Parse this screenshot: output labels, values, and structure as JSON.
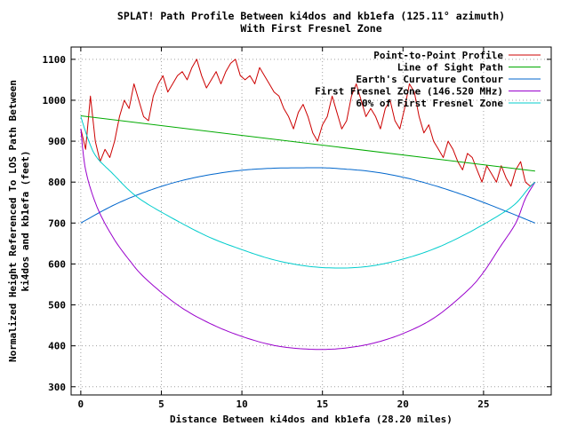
{
  "chart_data": {
    "type": "line",
    "title_line1": "SPLAT! Path Profile Between ki4dos and kb1efa (125.11° azimuth)",
    "title_line2": "With First Fresnel Zone",
    "xlabel": "Distance Between ki4dos and kb1efa (28.20 miles)",
    "ylabel_line1": "Normalized Height Referenced To LOS Path Between",
    "ylabel_line2": "ki4dos and kb1efa (feet)",
    "xlim": [
      -0.6,
      29.2
    ],
    "ylim": [
      280,
      1130
    ],
    "xticks": [
      0,
      5,
      10,
      15,
      20,
      25
    ],
    "yticks": [
      300,
      400,
      500,
      600,
      700,
      800,
      900,
      1000,
      1100
    ],
    "grid": true,
    "legend_position": "top-right",
    "series": [
      {
        "name": "Point-to-Point Profile",
        "color": "#cc0000",
        "x": [
          0,
          0.3,
          0.6,
          0.9,
          1.2,
          1.5,
          1.8,
          2.1,
          2.4,
          2.7,
          3.0,
          3.3,
          3.6,
          3.9,
          4.2,
          4.5,
          4.8,
          5.1,
          5.4,
          5.7,
          6.0,
          6.3,
          6.6,
          6.9,
          7.2,
          7.5,
          7.8,
          8.1,
          8.4,
          8.7,
          9.0,
          9.3,
          9.6,
          9.9,
          10.2,
          10.5,
          10.8,
          11.1,
          11.4,
          11.7,
          12.0,
          12.3,
          12.6,
          12.9,
          13.2,
          13.5,
          13.8,
          14.1,
          14.4,
          14.7,
          15.0,
          15.3,
          15.6,
          15.9,
          16.2,
          16.5,
          16.8,
          17.1,
          17.4,
          17.7,
          18.0,
          18.3,
          18.6,
          18.9,
          19.2,
          19.5,
          19.8,
          20.1,
          20.4,
          20.7,
          21.0,
          21.3,
          21.6,
          21.9,
          22.2,
          22.5,
          22.8,
          23.1,
          23.4,
          23.7,
          24.0,
          24.3,
          24.6,
          24.9,
          25.2,
          25.5,
          25.8,
          26.1,
          26.4,
          26.7,
          27.0,
          27.3,
          27.6,
          27.9,
          28.2
        ],
        "y": [
          930,
          880,
          1010,
          900,
          850,
          880,
          860,
          900,
          960,
          1000,
          980,
          1040,
          1000,
          960,
          950,
          1010,
          1040,
          1060,
          1020,
          1040,
          1060,
          1070,
          1050,
          1080,
          1100,
          1060,
          1030,
          1050,
          1070,
          1040,
          1070,
          1090,
          1100,
          1060,
          1050,
          1060,
          1040,
          1080,
          1060,
          1040,
          1020,
          1010,
          980,
          960,
          930,
          970,
          990,
          960,
          920,
          900,
          940,
          960,
          1010,
          970,
          930,
          950,
          1010,
          1040,
          1000,
          960,
          980,
          960,
          930,
          980,
          1000,
          950,
          930,
          980,
          1040,
          1020,
          960,
          920,
          940,
          900,
          880,
          860,
          900,
          880,
          850,
          830,
          870,
          860,
          830,
          800,
          840,
          820,
          800,
          840,
          810,
          790,
          830,
          850,
          800,
          790,
          800
        ],
        "style": "line"
      },
      {
        "name": "Line of Sight Path",
        "color": "#00aa00",
        "x": [
          0,
          28.2
        ],
        "y": [
          962,
          827
        ],
        "style": "line"
      },
      {
        "name": "Earth's Curvature Contour",
        "color": "#0066cc",
        "x": [
          0,
          2,
          4,
          6,
          8,
          10,
          12,
          14,
          15,
          16,
          18,
          20,
          22,
          24,
          26,
          28.2
        ],
        "y": [
          700,
          743,
          776,
          801,
          818,
          829,
          834,
          835,
          835,
          833,
          826,
          812,
          791,
          765,
          735,
          700
        ],
        "style": "curve"
      },
      {
        "name": "First Fresnel Zone (146.520 MHz)",
        "color": "#9900cc",
        "x": [
          0,
          0.3,
          1,
          2,
          3,
          4,
          6,
          8,
          10,
          12,
          14,
          16,
          18,
          20,
          22,
          24,
          25,
          26,
          27,
          27.6,
          28.2
        ],
        "y": [
          930,
          830,
          740,
          665,
          610,
          565,
          500,
          455,
          423,
          401,
          392,
          393,
          405,
          430,
          470,
          535,
          580,
          640,
          700,
          760,
          800
        ],
        "style": "curve"
      },
      {
        "name": "60% of First Fresnel Zone",
        "color": "#00cccc",
        "x": [
          0,
          0.5,
          1,
          2,
          3,
          4,
          6,
          8,
          10,
          12,
          14,
          16,
          18,
          20,
          22,
          24,
          26,
          27,
          27.8,
          28.2
        ],
        "y": [
          960,
          900,
          860,
          820,
          780,
          750,
          705,
          665,
          635,
          610,
          595,
          590,
          595,
          612,
          638,
          675,
          720,
          748,
          785,
          800
        ],
        "style": "curve"
      }
    ]
  }
}
